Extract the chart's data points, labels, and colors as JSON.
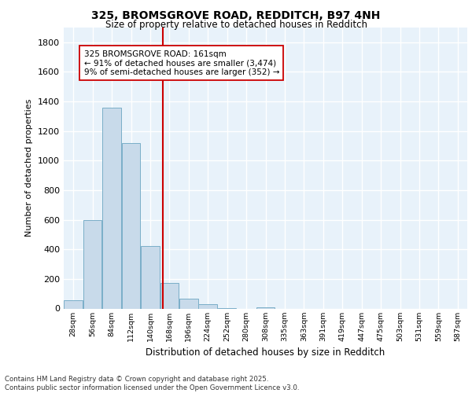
{
  "title_line1": "325, BROMSGROVE ROAD, REDDITCH, B97 4NH",
  "title_line2": "Size of property relative to detached houses in Redditch",
  "xlabel": "Distribution of detached houses by size in Redditch",
  "ylabel": "Number of detached properties",
  "bin_labels": [
    "28sqm",
    "56sqm",
    "84sqm",
    "112sqm",
    "140sqm",
    "168sqm",
    "196sqm",
    "224sqm",
    "252sqm",
    "280sqm",
    "308sqm",
    "335sqm",
    "363sqm",
    "391sqm",
    "419sqm",
    "447sqm",
    "475sqm",
    "503sqm",
    "531sqm",
    "559sqm",
    "587sqm"
  ],
  "bar_heights": [
    55,
    600,
    1360,
    1120,
    425,
    175,
    65,
    30,
    5,
    0,
    10,
    0,
    0,
    0,
    0,
    0,
    0,
    0,
    0,
    0,
    0
  ],
  "bar_color": "#c8daea",
  "bar_edge_color": "#7aaec8",
  "vline_color": "#cc0000",
  "annotation_text": "325 BROMSGROVE ROAD: 161sqm\n← 91% of detached houses are smaller (3,474)\n9% of semi-detached houses are larger (352) →",
  "annotation_box_facecolor": "#ffffff",
  "annotation_box_edgecolor": "#cc0000",
  "ylim": [
    0,
    1900
  ],
  "yticks": [
    0,
    200,
    400,
    600,
    800,
    1000,
    1200,
    1400,
    1600,
    1800
  ],
  "footer_line1": "Contains HM Land Registry data © Crown copyright and database right 2025.",
  "footer_line2": "Contains public sector information licensed under the Open Government Licence v3.0.",
  "plot_bg_color": "#e8f2fa",
  "fig_bg_color": "#ffffff",
  "grid_color": "#ffffff",
  "vline_x_index": 4.67
}
